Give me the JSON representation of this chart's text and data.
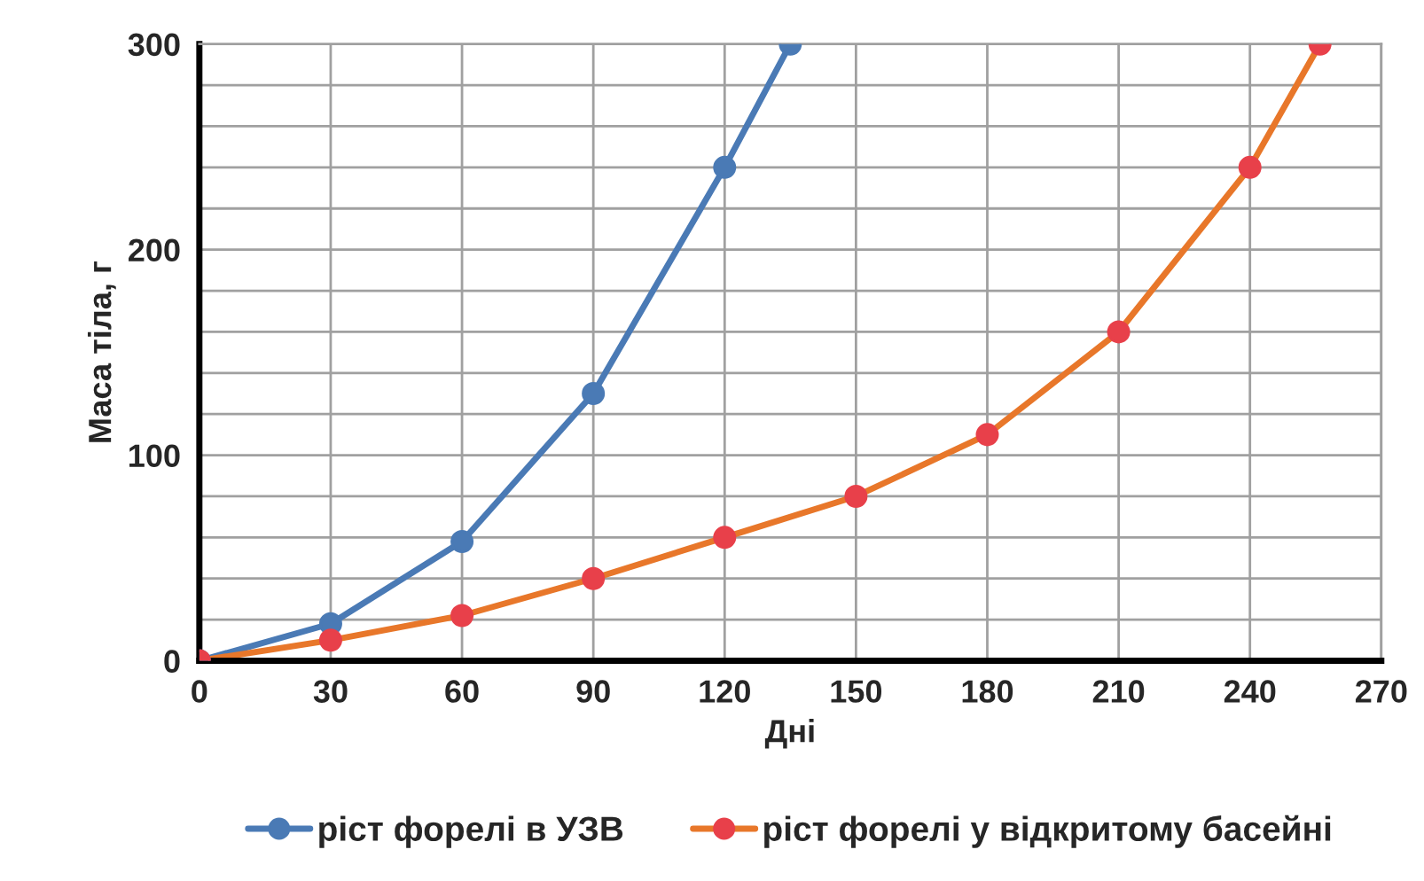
{
  "chart_data": {
    "type": "line",
    "xlabel": "Дні",
    "ylabel": "Маса тіла, г",
    "series": [
      {
        "name": "ріст форелі в УЗВ",
        "color": "#4a7ab5",
        "x": [
          0,
          30,
          60,
          90,
          120,
          135
        ],
        "values": [
          0,
          18,
          58,
          130,
          240,
          300
        ]
      },
      {
        "name": "ріст форелі у відкритому басейні",
        "color": "#e8772a",
        "x": [
          0,
          30,
          60,
          90,
          120,
          150,
          180,
          210,
          240,
          256
        ],
        "values": [
          0,
          10,
          22,
          40,
          60,
          80,
          110,
          160,
          240,
          300
        ]
      }
    ],
    "xlim": [
      0,
      270
    ],
    "xticks": [
      0,
      30,
      60,
      90,
      120,
      150,
      180,
      210,
      240,
      270
    ],
    "ylim": [
      0,
      300
    ],
    "yticks": [
      0,
      {
        "value": 20,
        "label": null
      },
      {
        "value": 40,
        "label": null
      },
      {
        "value": 60,
        "label": null
      },
      {
        "value": 80,
        "label": null
      },
      100,
      {
        "value": 120,
        "label": null
      },
      {
        "value": 140,
        "label": null
      },
      {
        "value": 160,
        "label": null
      },
      {
        "value": 180,
        "label": null
      },
      200,
      {
        "value": 220,
        "label": null
      },
      {
        "value": 240,
        "label": null
      },
      {
        "value": 260,
        "label": null
      },
      {
        "value": 280,
        "label": null
      },
      300
    ],
    "grid": true,
    "legend": "bottom",
    "marker": "circle",
    "line_style": "solid"
  }
}
